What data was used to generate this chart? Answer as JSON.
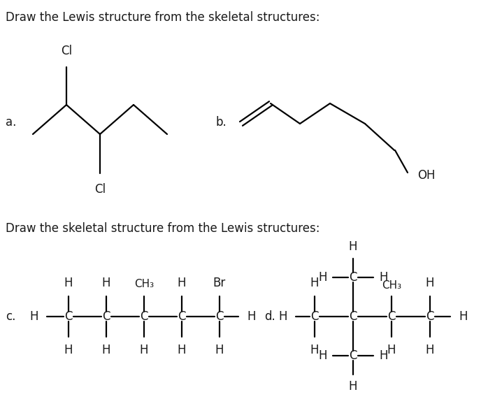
{
  "title1": "Draw the Lewis structure from the skeletal structures:",
  "title2": "Draw the skeletal structure from the Lewis structures:",
  "label_a": "a.",
  "label_b": "b.",
  "label_c": "c.",
  "label_d": "d.",
  "bg_color": "#ffffff",
  "line_color": "#000000",
  "text_color": "#1a1a1a",
  "font_family": "DejaVu Sans",
  "lw": 1.6
}
